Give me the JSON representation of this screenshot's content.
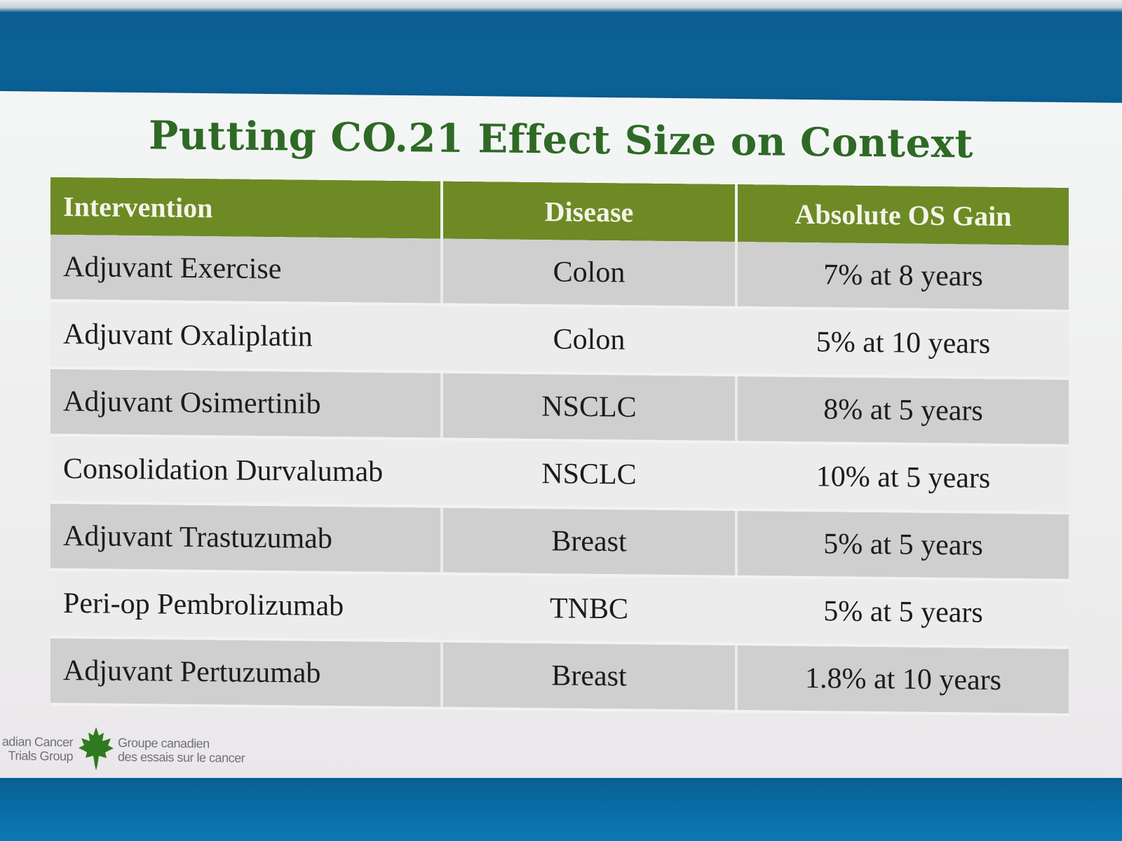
{
  "slide": {
    "title": "Putting CO.21 Effect Size on Context",
    "table": {
      "headers": {
        "intervention": "Intervention",
        "disease": "Disease",
        "gain": "Absolute OS Gain"
      },
      "rows": [
        {
          "intervention": "Adjuvant Exercise",
          "disease": "Colon",
          "gain": "7% at 8 years"
        },
        {
          "intervention": "Adjuvant Oxaliplatin",
          "disease": "Colon",
          "gain": "5% at 10 years"
        },
        {
          "intervention": "Adjuvant Osimertinib",
          "disease": "NSCLC",
          "gain": "8% at 5 years"
        },
        {
          "intervention": "Consolidation Durvalumab",
          "disease": "NSCLC",
          "gain": "10% at 5 years"
        },
        {
          "intervention": "Adjuvant Trastuzumab",
          "disease": "Breast",
          "gain": "5% at 5 years"
        },
        {
          "intervention": "Peri-op Pembrolizumab",
          "disease": "TNBC",
          "gain": "5% at 5 years"
        },
        {
          "intervention": "Adjuvant Pertuzumab",
          "disease": "Breast",
          "gain": "1.8% at 10 years"
        }
      ]
    },
    "logo": {
      "english_line1": "adian Cancer",
      "english_line2": "Trials Group",
      "french_line1": "Groupe canadien",
      "french_line2": "des essais sur le cancer",
      "icon": "maple-leaf-icon"
    }
  },
  "colors": {
    "title": "#2e6a25",
    "header_bg": "#6d8a24",
    "row_dark": "#cfcfcf",
    "row_light": "#ececec",
    "frame_blue": "#0a6aa2",
    "leaf_green": "#2f7a1f"
  }
}
